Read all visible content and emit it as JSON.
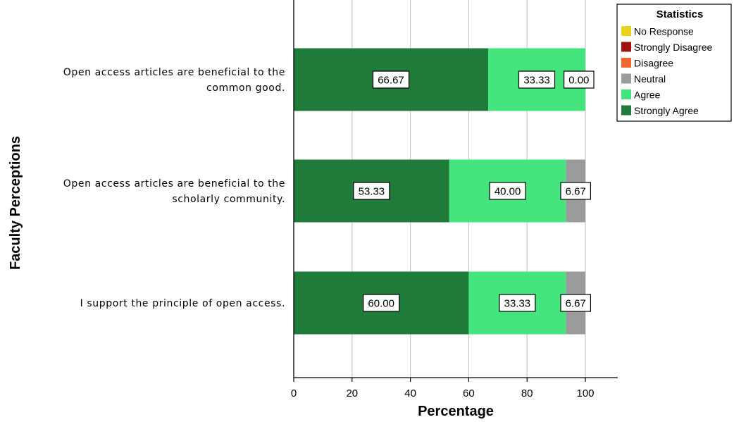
{
  "chart_data": {
    "type": "bar",
    "orientation": "horizontal",
    "stacked": true,
    "categories": [
      [
        "Open access articles are beneficial to the",
        "common good."
      ],
      [
        "Open access articles are beneficial to the",
        "scholarly community."
      ],
      [
        "I support the principle of open access."
      ]
    ],
    "series": [
      {
        "name": "Strongly Agree",
        "color": "#1e7b3a",
        "values": [
          66.67,
          53.33,
          60.0
        ],
        "labels": [
          "66.67",
          "53.33",
          "60.00"
        ]
      },
      {
        "name": "Agree",
        "color": "#44e57c",
        "values": [
          33.33,
          40.0,
          33.33
        ],
        "labels": [
          "33.33",
          "40.00",
          "33.33"
        ]
      },
      {
        "name": "Neutral",
        "color": "#9b9b9b",
        "values": [
          0.0,
          6.67,
          6.67
        ],
        "labels": [
          "0.00",
          "6.67",
          "6.67"
        ]
      }
    ],
    "xlabel": "Percentage",
    "ylabel": "Faculty Perceptions",
    "xlim": [
      0,
      100
    ],
    "xticks": [
      0,
      20,
      40,
      60,
      80,
      100
    ],
    "grid": "vertical",
    "legend": {
      "title": "Statistics",
      "placement": "top-right",
      "items": [
        {
          "name": "No Response",
          "color": "#e8d21a"
        },
        {
          "name": "Strongly Disagree",
          "color": "#a01010"
        },
        {
          "name": "Disagree",
          "color": "#f06a2e"
        },
        {
          "name": "Neutral",
          "color": "#9b9b9b"
        },
        {
          "name": "Agree",
          "color": "#44e57c"
        },
        {
          "name": "Strongly Agree",
          "color": "#1e7b3a"
        }
      ]
    }
  }
}
